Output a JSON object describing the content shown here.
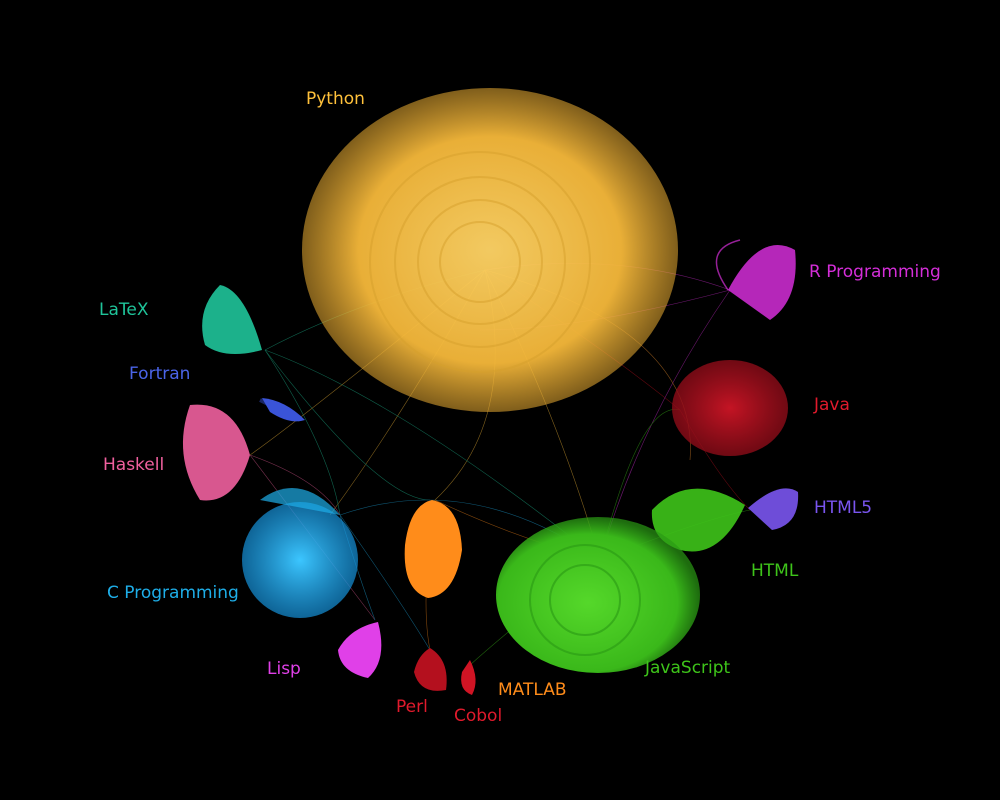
{
  "graph": {
    "communities": [
      {
        "id": "python",
        "label": "Python",
        "color": "#ffc13b",
        "size": "large"
      },
      {
        "id": "r",
        "label": "R Programming",
        "color": "#d52ed9",
        "size": "small"
      },
      {
        "id": "java",
        "label": "Java",
        "color": "#c0101f",
        "size": "medium"
      },
      {
        "id": "html5",
        "label": "HTML5",
        "color": "#7a55f0",
        "size": "small"
      },
      {
        "id": "html",
        "label": "HTML",
        "color": "#3ec41a",
        "size": "small"
      },
      {
        "id": "javascript",
        "label": "JavaScript",
        "color": "#3ec41a",
        "size": "large"
      },
      {
        "id": "matlab",
        "label": "MATLAB",
        "color": "#ff8c1a",
        "size": "small"
      },
      {
        "id": "cobol",
        "label": "Cobol",
        "color": "#d01424",
        "size": "tiny"
      },
      {
        "id": "perl",
        "label": "Perl",
        "color": "#d01424",
        "size": "tiny"
      },
      {
        "id": "lisp",
        "label": "Lisp",
        "color": "#e040e8",
        "size": "small"
      },
      {
        "id": "c",
        "label": "C Programming",
        "color": "#1eaee8",
        "size": "medium"
      },
      {
        "id": "haskell",
        "label": "Haskell",
        "color": "#f0609e",
        "size": "small"
      },
      {
        "id": "fortran",
        "label": "Fortran",
        "color": "#3a54d8",
        "size": "tiny"
      },
      {
        "id": "latex",
        "label": "LaTeX",
        "color": "#1fc49a",
        "size": "small"
      }
    ]
  }
}
